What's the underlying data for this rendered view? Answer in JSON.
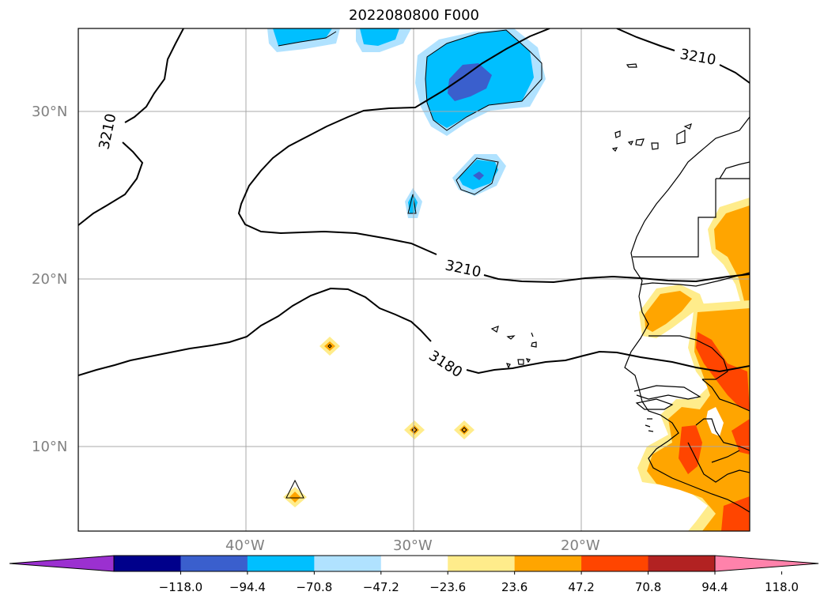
{
  "title": "2022080800 F000",
  "lat_labels": [
    "30°N",
    "20°N",
    "10°N"
  ],
  "lon_labels": [
    "40°W",
    "30°W",
    "20°W"
  ],
  "contour_labels": [
    "3210",
    "3210",
    "3210",
    "3180"
  ],
  "colorbar": {
    "ticks": [
      "−118.0",
      "−94.4",
      "−70.8",
      "−47.2",
      "−23.6",
      "23.6",
      "47.2",
      "70.8",
      "94.4",
      "118.0"
    ],
    "colors": [
      "#9b30d0",
      "#00008b",
      "#3a5fcd",
      "#00bfff",
      "#b0e2ff",
      "#ffffff",
      "#ffec8b",
      "#ffa500",
      "#ff4500",
      "#b22222",
      "#ff82ab"
    ]
  },
  "colors": {
    "light_blue": "#b0e2ff",
    "deep_sky_blue": "#00bfff",
    "royal_blue": "#3a5fcd",
    "light_yellow": "#ffec8b",
    "orange": "#ffa500",
    "orange_red": "#ff4500"
  }
}
